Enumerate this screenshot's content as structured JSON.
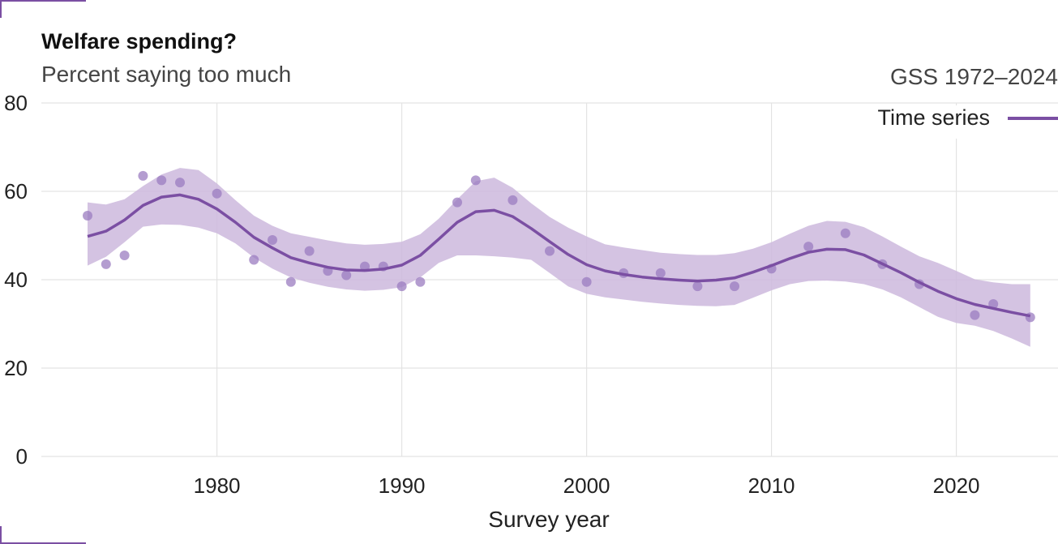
{
  "header": {
    "title": "Welfare spending?",
    "subtitle": "Percent saying too much",
    "source": "GSS 1972–2024"
  },
  "legend": {
    "label": "Time series"
  },
  "colors": {
    "accent": "#7b4fa3",
    "points": "#9b7cc0",
    "band": "#cdb8dd",
    "grid": "#e3e3e3"
  },
  "chart_data": {
    "type": "line",
    "title": "Welfare spending?",
    "subtitle": "Percent saying too much",
    "xlabel": "Survey year",
    "ylabel": "",
    "xlim": [
      1971.6,
      1972.6
    ],
    "x_range": [
      1970.5,
      2025.5
    ],
    "ylim": [
      0,
      80
    ],
    "x_ticks": [
      1980,
      1990,
      2000,
      2010,
      2020
    ],
    "y_ticks": [
      0,
      20,
      40,
      60,
      80
    ],
    "grid": true,
    "legend_position": "top-right",
    "points": {
      "x": [
        1973,
        1974,
        1975,
        1976,
        1977,
        1978,
        1980,
        1982,
        1983,
        1984,
        1985,
        1986,
        1987,
        1988,
        1989,
        1990,
        1991,
        1993,
        1994,
        1996,
        1998,
        2000,
        2002,
        2004,
        2006,
        2008,
        2010,
        2012,
        2014,
        2016,
        2018,
        2021,
        2022,
        2024
      ],
      "y": [
        54.5,
        43.5,
        45.5,
        63.5,
        62.5,
        62.0,
        59.5,
        44.5,
        49.0,
        39.5,
        46.5,
        42.0,
        41.0,
        43.0,
        43.0,
        38.5,
        39.5,
        57.5,
        62.5,
        58.0,
        46.5,
        39.5,
        41.5,
        41.5,
        38.5,
        38.5,
        42.5,
        47.5,
        50.5,
        43.5,
        39.0,
        32.0,
        34.5,
        31.5
      ]
    },
    "series": [
      {
        "name": "Time series",
        "x": [
          1973,
          1974,
          1975,
          1976,
          1977,
          1978,
          1979,
          1980,
          1981,
          1982,
          1983,
          1984,
          1985,
          1986,
          1987,
          1988,
          1989,
          1990,
          1991,
          1992,
          1993,
          1994,
          1995,
          1996,
          1997,
          1998,
          1999,
          2000,
          2001,
          2002,
          2003,
          2004,
          2005,
          2006,
          2007,
          2008,
          2009,
          2010,
          2011,
          2012,
          2013,
          2014,
          2015,
          2016,
          2017,
          2018,
          2019,
          2020,
          2021,
          2022,
          2023,
          2024
        ],
        "y": [
          49.8,
          51.0,
          53.5,
          56.8,
          58.7,
          59.2,
          58.2,
          56.0,
          53.0,
          49.6,
          47.2,
          45.0,
          43.8,
          42.8,
          42.2,
          42.1,
          42.4,
          43.3,
          45.5,
          49.2,
          53.0,
          55.4,
          55.7,
          54.3,
          51.6,
          48.6,
          45.7,
          43.4,
          42.0,
          41.2,
          40.6,
          40.2,
          39.9,
          39.7,
          39.9,
          40.4,
          41.7,
          43.2,
          44.8,
          46.2,
          46.9,
          46.8,
          45.6,
          43.6,
          41.6,
          39.4,
          37.4,
          35.7,
          34.4,
          33.5,
          32.6,
          31.8
        ]
      }
    ],
    "band": {
      "x": [
        1973,
        1974,
        1975,
        1976,
        1977,
        1978,
        1979,
        1980,
        1981,
        1982,
        1983,
        1984,
        1985,
        1986,
        1987,
        1988,
        1989,
        1990,
        1991,
        1992,
        1993,
        1994,
        1995,
        1996,
        1997,
        1998,
        1999,
        2000,
        2001,
        2002,
        2003,
        2004,
        2005,
        2006,
        2007,
        2008,
        2009,
        2010,
        2011,
        2012,
        2013,
        2014,
        2015,
        2016,
        2017,
        2018,
        2019,
        2020,
        2021,
        2022,
        2023,
        2024
      ],
      "upper": [
        57.5,
        57.0,
        58.2,
        61.2,
        63.8,
        65.3,
        64.8,
        61.8,
        58.0,
        54.5,
        52.2,
        50.5,
        49.7,
        48.9,
        48.2,
        47.9,
        48.1,
        48.6,
        50.3,
        53.8,
        58.2,
        62.3,
        63.1,
        60.8,
        57.3,
        54.2,
        51.8,
        49.8,
        48.0,
        47.3,
        46.7,
        46.1,
        45.8,
        45.6,
        45.6,
        46.0,
        47.0,
        48.5,
        50.4,
        52.2,
        53.3,
        53.1,
        51.9,
        49.8,
        47.5,
        45.3,
        43.8,
        42.0,
        40.1,
        39.4,
        39.0,
        39.0
      ],
      "lower": [
        43.2,
        45.2,
        48.5,
        52.0,
        52.5,
        52.4,
        51.8,
        50.5,
        48.2,
        45.0,
        42.5,
        40.5,
        39.3,
        38.4,
        37.8,
        37.5,
        37.7,
        38.3,
        40.5,
        43.8,
        45.5,
        45.5,
        45.3,
        45.0,
        44.5,
        41.5,
        38.5,
        36.8,
        36.0,
        35.5,
        35.0,
        34.6,
        34.3,
        34.1,
        34.0,
        34.3,
        35.9,
        37.6,
        39.0,
        39.7,
        39.8,
        39.6,
        39.0,
        37.8,
        36.0,
        33.8,
        31.6,
        30.2,
        29.6,
        28.4,
        26.7,
        24.8
      ]
    }
  }
}
